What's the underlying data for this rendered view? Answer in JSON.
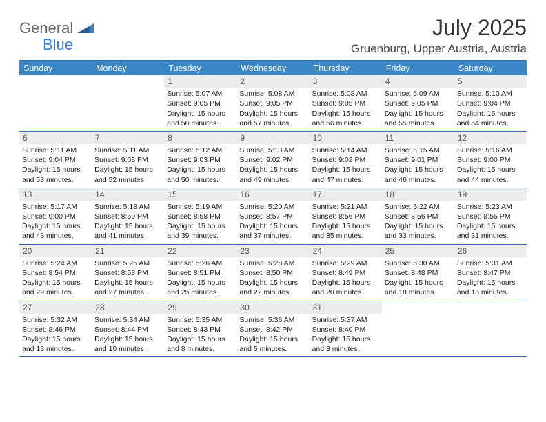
{
  "logo": {
    "text1": "General",
    "text2": "Blue"
  },
  "title": "July 2025",
  "location": "Gruenburg, Upper Austria, Austria",
  "colors": {
    "header_bg": "#3b86c7",
    "header_text": "#ffffff",
    "border": "#2f6aa8",
    "daynum_bg": "#ececec",
    "daynum_text": "#555555",
    "body_text": "#222222",
    "logo_gray": "#666666",
    "logo_blue": "#3b7fc4"
  },
  "weekdays": [
    "Sunday",
    "Monday",
    "Tuesday",
    "Wednesday",
    "Thursday",
    "Friday",
    "Saturday"
  ],
  "weeks": [
    [
      null,
      null,
      {
        "n": "1",
        "sunrise": "5:07 AM",
        "sunset": "9:05 PM",
        "daylight": "15 hours and 58 minutes."
      },
      {
        "n": "2",
        "sunrise": "5:08 AM",
        "sunset": "9:05 PM",
        "daylight": "15 hours and 57 minutes."
      },
      {
        "n": "3",
        "sunrise": "5:08 AM",
        "sunset": "9:05 PM",
        "daylight": "15 hours and 56 minutes."
      },
      {
        "n": "4",
        "sunrise": "5:09 AM",
        "sunset": "9:05 PM",
        "daylight": "15 hours and 55 minutes."
      },
      {
        "n": "5",
        "sunrise": "5:10 AM",
        "sunset": "9:04 PM",
        "daylight": "15 hours and 54 minutes."
      }
    ],
    [
      {
        "n": "6",
        "sunrise": "5:11 AM",
        "sunset": "9:04 PM",
        "daylight": "15 hours and 53 minutes."
      },
      {
        "n": "7",
        "sunrise": "5:11 AM",
        "sunset": "9:03 PM",
        "daylight": "15 hours and 52 minutes."
      },
      {
        "n": "8",
        "sunrise": "5:12 AM",
        "sunset": "9:03 PM",
        "daylight": "15 hours and 50 minutes."
      },
      {
        "n": "9",
        "sunrise": "5:13 AM",
        "sunset": "9:02 PM",
        "daylight": "15 hours and 49 minutes."
      },
      {
        "n": "10",
        "sunrise": "5:14 AM",
        "sunset": "9:02 PM",
        "daylight": "15 hours and 47 minutes."
      },
      {
        "n": "11",
        "sunrise": "5:15 AM",
        "sunset": "9:01 PM",
        "daylight": "15 hours and 46 minutes."
      },
      {
        "n": "12",
        "sunrise": "5:16 AM",
        "sunset": "9:00 PM",
        "daylight": "15 hours and 44 minutes."
      }
    ],
    [
      {
        "n": "13",
        "sunrise": "5:17 AM",
        "sunset": "9:00 PM",
        "daylight": "15 hours and 43 minutes."
      },
      {
        "n": "14",
        "sunrise": "5:18 AM",
        "sunset": "8:59 PM",
        "daylight": "15 hours and 41 minutes."
      },
      {
        "n": "15",
        "sunrise": "5:19 AM",
        "sunset": "8:58 PM",
        "daylight": "15 hours and 39 minutes."
      },
      {
        "n": "16",
        "sunrise": "5:20 AM",
        "sunset": "8:57 PM",
        "daylight": "15 hours and 37 minutes."
      },
      {
        "n": "17",
        "sunrise": "5:21 AM",
        "sunset": "8:56 PM",
        "daylight": "15 hours and 35 minutes."
      },
      {
        "n": "18",
        "sunrise": "5:22 AM",
        "sunset": "8:56 PM",
        "daylight": "15 hours and 33 minutes."
      },
      {
        "n": "19",
        "sunrise": "5:23 AM",
        "sunset": "8:55 PM",
        "daylight": "15 hours and 31 minutes."
      }
    ],
    [
      {
        "n": "20",
        "sunrise": "5:24 AM",
        "sunset": "8:54 PM",
        "daylight": "15 hours and 29 minutes."
      },
      {
        "n": "21",
        "sunrise": "5:25 AM",
        "sunset": "8:53 PM",
        "daylight": "15 hours and 27 minutes."
      },
      {
        "n": "22",
        "sunrise": "5:26 AM",
        "sunset": "8:51 PM",
        "daylight": "15 hours and 25 minutes."
      },
      {
        "n": "23",
        "sunrise": "5:28 AM",
        "sunset": "8:50 PM",
        "daylight": "15 hours and 22 minutes."
      },
      {
        "n": "24",
        "sunrise": "5:29 AM",
        "sunset": "8:49 PM",
        "daylight": "15 hours and 20 minutes."
      },
      {
        "n": "25",
        "sunrise": "5:30 AM",
        "sunset": "8:48 PM",
        "daylight": "15 hours and 18 minutes."
      },
      {
        "n": "26",
        "sunrise": "5:31 AM",
        "sunset": "8:47 PM",
        "daylight": "15 hours and 15 minutes."
      }
    ],
    [
      {
        "n": "27",
        "sunrise": "5:32 AM",
        "sunset": "8:46 PM",
        "daylight": "15 hours and 13 minutes."
      },
      {
        "n": "28",
        "sunrise": "5:34 AM",
        "sunset": "8:44 PM",
        "daylight": "15 hours and 10 minutes."
      },
      {
        "n": "29",
        "sunrise": "5:35 AM",
        "sunset": "8:43 PM",
        "daylight": "15 hours and 8 minutes."
      },
      {
        "n": "30",
        "sunrise": "5:36 AM",
        "sunset": "8:42 PM",
        "daylight": "15 hours and 5 minutes."
      },
      {
        "n": "31",
        "sunrise": "5:37 AM",
        "sunset": "8:40 PM",
        "daylight": "15 hours and 3 minutes."
      },
      null,
      null
    ]
  ],
  "labels": {
    "sunrise": "Sunrise: ",
    "sunset": "Sunset: ",
    "daylight": "Daylight: "
  }
}
